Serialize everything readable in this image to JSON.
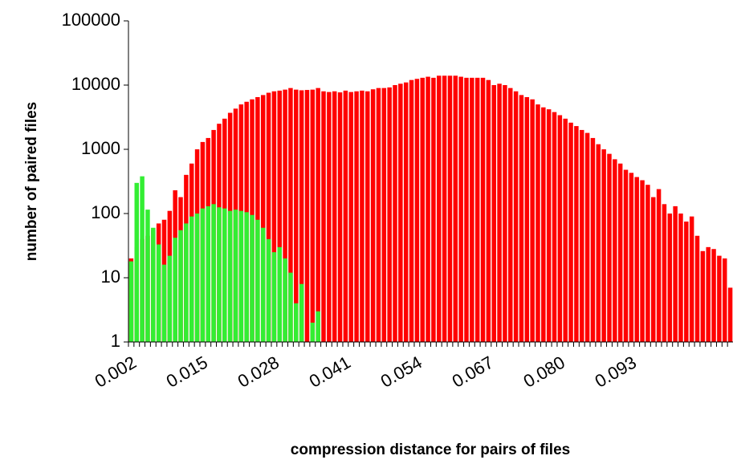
{
  "chart_data": {
    "type": "bar",
    "log_scale": true,
    "x_label": "compression distance for pairs of files",
    "y_label": "number of paired files",
    "categories": [
      "0.002",
      null,
      null,
      null,
      null,
      null,
      null,
      null,
      null,
      null,
      null,
      null,
      null,
      "0.015",
      null,
      null,
      null,
      null,
      null,
      null,
      null,
      null,
      null,
      null,
      null,
      null,
      "0.028",
      null,
      null,
      null,
      null,
      null,
      null,
      null,
      null,
      null,
      null,
      null,
      null,
      "0.041",
      null,
      null,
      null,
      null,
      null,
      null,
      null,
      null,
      null,
      null,
      null,
      null,
      "0.054",
      null,
      null,
      null,
      null,
      null,
      null,
      null,
      null,
      null,
      null,
      null,
      null,
      "0.067",
      null,
      null,
      null,
      null,
      null,
      null,
      null,
      null,
      null,
      null,
      null,
      null,
      "0.080",
      null,
      null,
      null,
      null,
      null,
      null,
      null,
      null,
      null,
      null,
      null,
      null,
      "0.093",
      null,
      null,
      null,
      null,
      null,
      null,
      null,
      null,
      null,
      null,
      null,
      null,
      null,
      null,
      null,
      null,
      null,
      null
    ],
    "series": [
      {
        "color": "#ff0000",
        "values": [
          20,
          30,
          40,
          45,
          55,
          70,
          80,
          110,
          230,
          180,
          400,
          600,
          1000,
          1300,
          1500,
          2000,
          2500,
          3000,
          3700,
          4300,
          5000,
          5500,
          6000,
          6500,
          7000,
          7600,
          8000,
          8200,
          8500,
          9000,
          8500,
          8300,
          8400,
          8500,
          9000,
          8000,
          7800,
          8000,
          7700,
          8200,
          7800,
          8000,
          8200,
          8000,
          8600,
          9000,
          9000,
          9200,
          10000,
          10500,
          11000,
          12000,
          12500,
          13000,
          13500,
          13000,
          14000,
          14000,
          14000,
          14000,
          13500,
          13000,
          13000,
          13000,
          13000,
          12000,
          10000,
          10500,
          10000,
          9000,
          8000,
          7000,
          6500,
          6000,
          5000,
          4500,
          4200,
          3800,
          3400,
          3000,
          2600,
          2300,
          2000,
          1800,
          1500,
          1200,
          1000,
          850,
          700,
          600,
          480,
          430,
          370,
          330,
          280,
          180,
          240,
          140,
          100,
          130,
          100,
          75,
          90,
          45,
          26,
          30,
          28,
          22,
          20,
          7
        ]
      },
      {
        "color": "#33ee33",
        "values": [
          18,
          300,
          380,
          115,
          60,
          33,
          16,
          22,
          42,
          55,
          70,
          90,
          100,
          120,
          130,
          140,
          125,
          120,
          110,
          115,
          110,
          105,
          95,
          80,
          60,
          40,
          25,
          30,
          20,
          12,
          4,
          8,
          null,
          2,
          3,
          null,
          null,
          null,
          null,
          null,
          null,
          null,
          null,
          null,
          null,
          null,
          null,
          null,
          null,
          null,
          null,
          null,
          null,
          null,
          null,
          null,
          null,
          null,
          null,
          null,
          null,
          null,
          null,
          null,
          null,
          null,
          null,
          null,
          null,
          null,
          null,
          null,
          null,
          null,
          null,
          null,
          null,
          null,
          null,
          null,
          null,
          null,
          null,
          null,
          null,
          null,
          null,
          null,
          null,
          null,
          null,
          null,
          null,
          null,
          null,
          null,
          null,
          null,
          null,
          null,
          null,
          null,
          null,
          null,
          null,
          null,
          null,
          null,
          null,
          null
        ]
      }
    ],
    "ylim": [
      1,
      100000
    ],
    "yticks": [
      1,
      10,
      100,
      1000,
      10000,
      100000
    ]
  }
}
